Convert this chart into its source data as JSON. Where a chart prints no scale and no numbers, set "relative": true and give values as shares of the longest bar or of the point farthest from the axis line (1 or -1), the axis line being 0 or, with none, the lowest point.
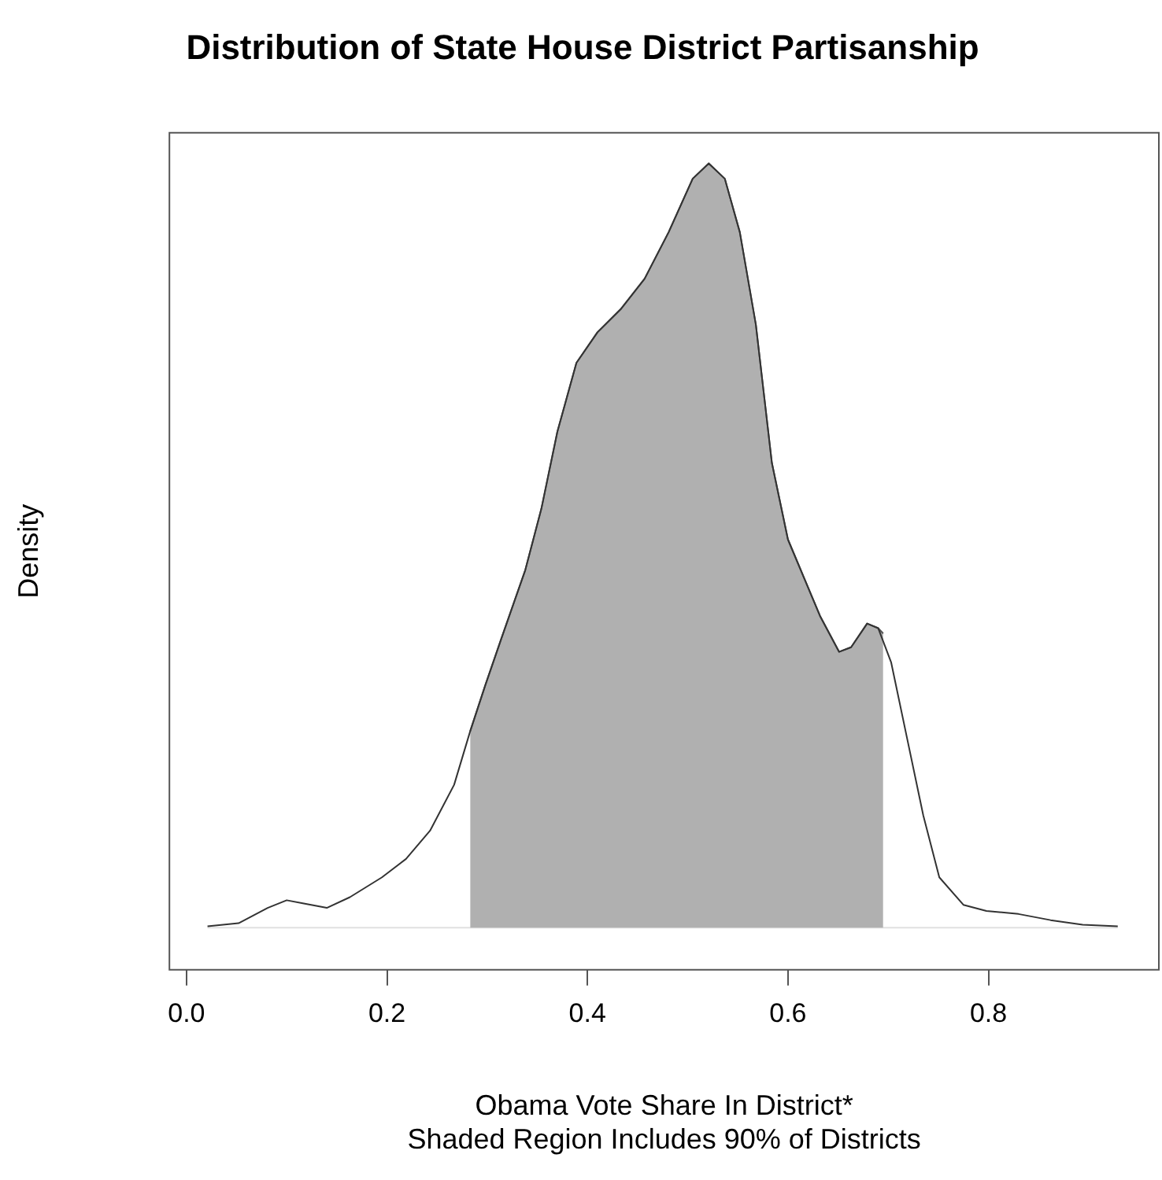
{
  "chart_data": {
    "type": "line",
    "title": "Distribution of State House District Partisanship",
    "xlabel": "Obama Vote Share In District*",
    "ylabel": "Density",
    "annotations": [
      "Shaded Region Includes 90% of Districts"
    ],
    "relative": true,
    "legend": false,
    "grid": false,
    "tick_labels": "x",
    "xlim": [
      -0.017,
      0.97
    ],
    "xticks": [
      {
        "value": 0,
        "label": "0.0"
      },
      0.2,
      0.4,
      0.6,
      0.8
    ],
    "series": [
      {
        "color": "#333333",
        "x": [
          0.021,
          0.052,
          0.081,
          0.1,
          0.116,
          0.14,
          0.163,
          0.195,
          0.219,
          0.243,
          0.267,
          0.283,
          0.298,
          0.314,
          0.338,
          0.354,
          0.37,
          0.389,
          0.41,
          0.433,
          0.457,
          0.481,
          0.505,
          0.521,
          0.537,
          0.552,
          0.568,
          0.584,
          0.6,
          0.616,
          0.632,
          0.651,
          0.663,
          0.679,
          0.69,
          0.703,
          0.719,
          0.735,
          0.751,
          0.775,
          0.798,
          0.83,
          0.862,
          0.894,
          0.929
        ],
        "values": [
          0.002,
          0.006,
          0.026,
          0.036,
          0.032,
          0.026,
          0.04,
          0.066,
          0.09,
          0.127,
          0.187,
          0.257,
          0.317,
          0.378,
          0.468,
          0.548,
          0.649,
          0.739,
          0.779,
          0.809,
          0.849,
          0.91,
          0.98,
          1,
          0.98,
          0.91,
          0.789,
          0.608,
          0.508,
          0.458,
          0.408,
          0.361,
          0.367,
          0.398,
          0.392,
          0.347,
          0.247,
          0.147,
          0.066,
          0.03,
          0.022,
          0.018,
          0.01,
          0.004,
          0.002
        ]
      },
      {
        "type": "area",
        "color": "#b0b0b0",
        "x": [
          0.283,
          0.298,
          0.314,
          0.338,
          0.354,
          0.37,
          0.389,
          0.41,
          0.433,
          0.457,
          0.481,
          0.505,
          0.521,
          0.537,
          0.552,
          0.568,
          0.584,
          0.6,
          0.616,
          0.632,
          0.651,
          0.663,
          0.679,
          0.69,
          0.695
        ],
        "values": [
          0.257,
          0.317,
          0.378,
          0.468,
          0.548,
          0.649,
          0.739,
          0.779,
          0.809,
          0.849,
          0.91,
          0.98,
          1,
          0.98,
          0.91,
          0.789,
          0.608,
          0.508,
          0.458,
          0.408,
          0.361,
          0.367,
          0.398,
          0.392,
          0.385
        ]
      }
    ]
  }
}
